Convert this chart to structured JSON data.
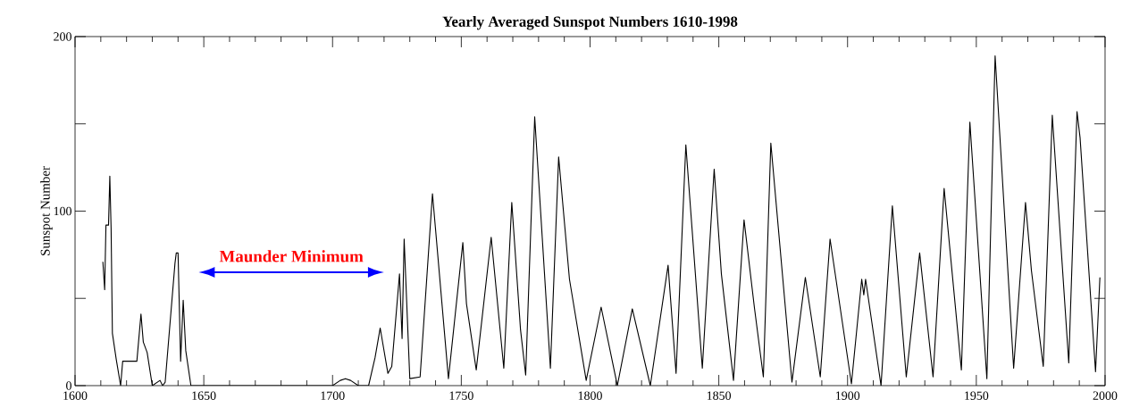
{
  "chart_data": {
    "type": "line",
    "title": "Yearly Averaged Sunspot Numbers 1610-1998",
    "ylabel": "Sunspot Number",
    "xlim": [
      1600,
      2000
    ],
    "xticks": [
      1600,
      1650,
      1700,
      1750,
      1800,
      1850,
      1900,
      1950,
      2000
    ],
    "ylim": [
      0,
      200
    ],
    "yticks": [
      0,
      {
        "value": 50,
        "label": null
      },
      100,
      {
        "value": 150,
        "label": null
      },
      200
    ],
    "grid": false,
    "marker": "none",
    "line_style": "solid",
    "annotations": [
      "Maunder Minimum"
    ],
    "series": [
      {
        "color": "#000000",
        "x": [
          1610.8,
          1611.5,
          1612,
          1613,
          1613.5,
          1614,
          1614.5,
          1616,
          1617.7,
          1618.5,
          1624,
          1625.6,
          1626.5,
          1628,
          1630,
          1633,
          1634,
          1635,
          1638.8,
          1639.3,
          1640,
          1641,
          1642,
          1643,
          1645,
          1650,
          1660,
          1700,
          1703,
          1705,
          1707,
          1710,
          1714,
          1716.5,
          1718.5,
          1721.5,
          1723,
          1726,
          1727,
          1727.8,
          1730,
          1734,
          1738.8,
          1745,
          1750.6,
          1752,
          1755.8,
          1761.6,
          1766.5,
          1769.6,
          1773,
          1775,
          1778.5,
          1784.6,
          1787.8,
          1792,
          1798.5,
          1804.3,
          1810.6,
          1816.4,
          1823.4,
          1830.3,
          1833.4,
          1837.2,
          1843.6,
          1848.2,
          1851,
          1855.7,
          1859.8,
          1863.8,
          1867.3,
          1870.2,
          1878.4,
          1883.6,
          1889.4,
          1893.2,
          1901.5,
          1905.5,
          1906.3,
          1907,
          1913,
          1917.4,
          1922.8,
          1928,
          1933.2,
          1937.5,
          1944.2,
          1947.5,
          1954.1,
          1957.3,
          1964.5,
          1969.1,
          1971.4,
          1976,
          1979.5,
          1985.9,
          1989.1,
          1990.3,
          1996.3,
          1998
        ],
        "values": [
          71,
          55,
          92,
          92,
          120,
          90,
          30,
          15,
          0,
          14,
          14,
          41,
          25,
          19,
          0,
          3,
          0,
          2,
          70,
          76,
          76,
          14,
          49,
          20,
          0,
          0,
          0,
          0,
          3,
          4,
          3,
          0,
          0,
          16,
          33,
          7,
          11,
          64,
          27,
          84,
          4,
          5,
          110,
          4,
          82,
          47,
          9,
          85,
          10,
          105,
          32,
          6,
          154,
          10,
          131,
          61,
          3,
          45,
          0,
          44,
          0,
          69,
          7,
          138,
          10,
          124,
          64,
          3,
          95,
          45,
          5,
          139,
          2,
          62,
          5,
          84,
          1,
          61,
          52,
          61,
          0,
          103,
          5,
          76,
          5,
          113,
          9,
          151,
          4,
          189,
          10,
          105,
          66,
          11,
          155,
          13,
          157,
          142,
          8,
          62
        ]
      }
    ]
  }
}
